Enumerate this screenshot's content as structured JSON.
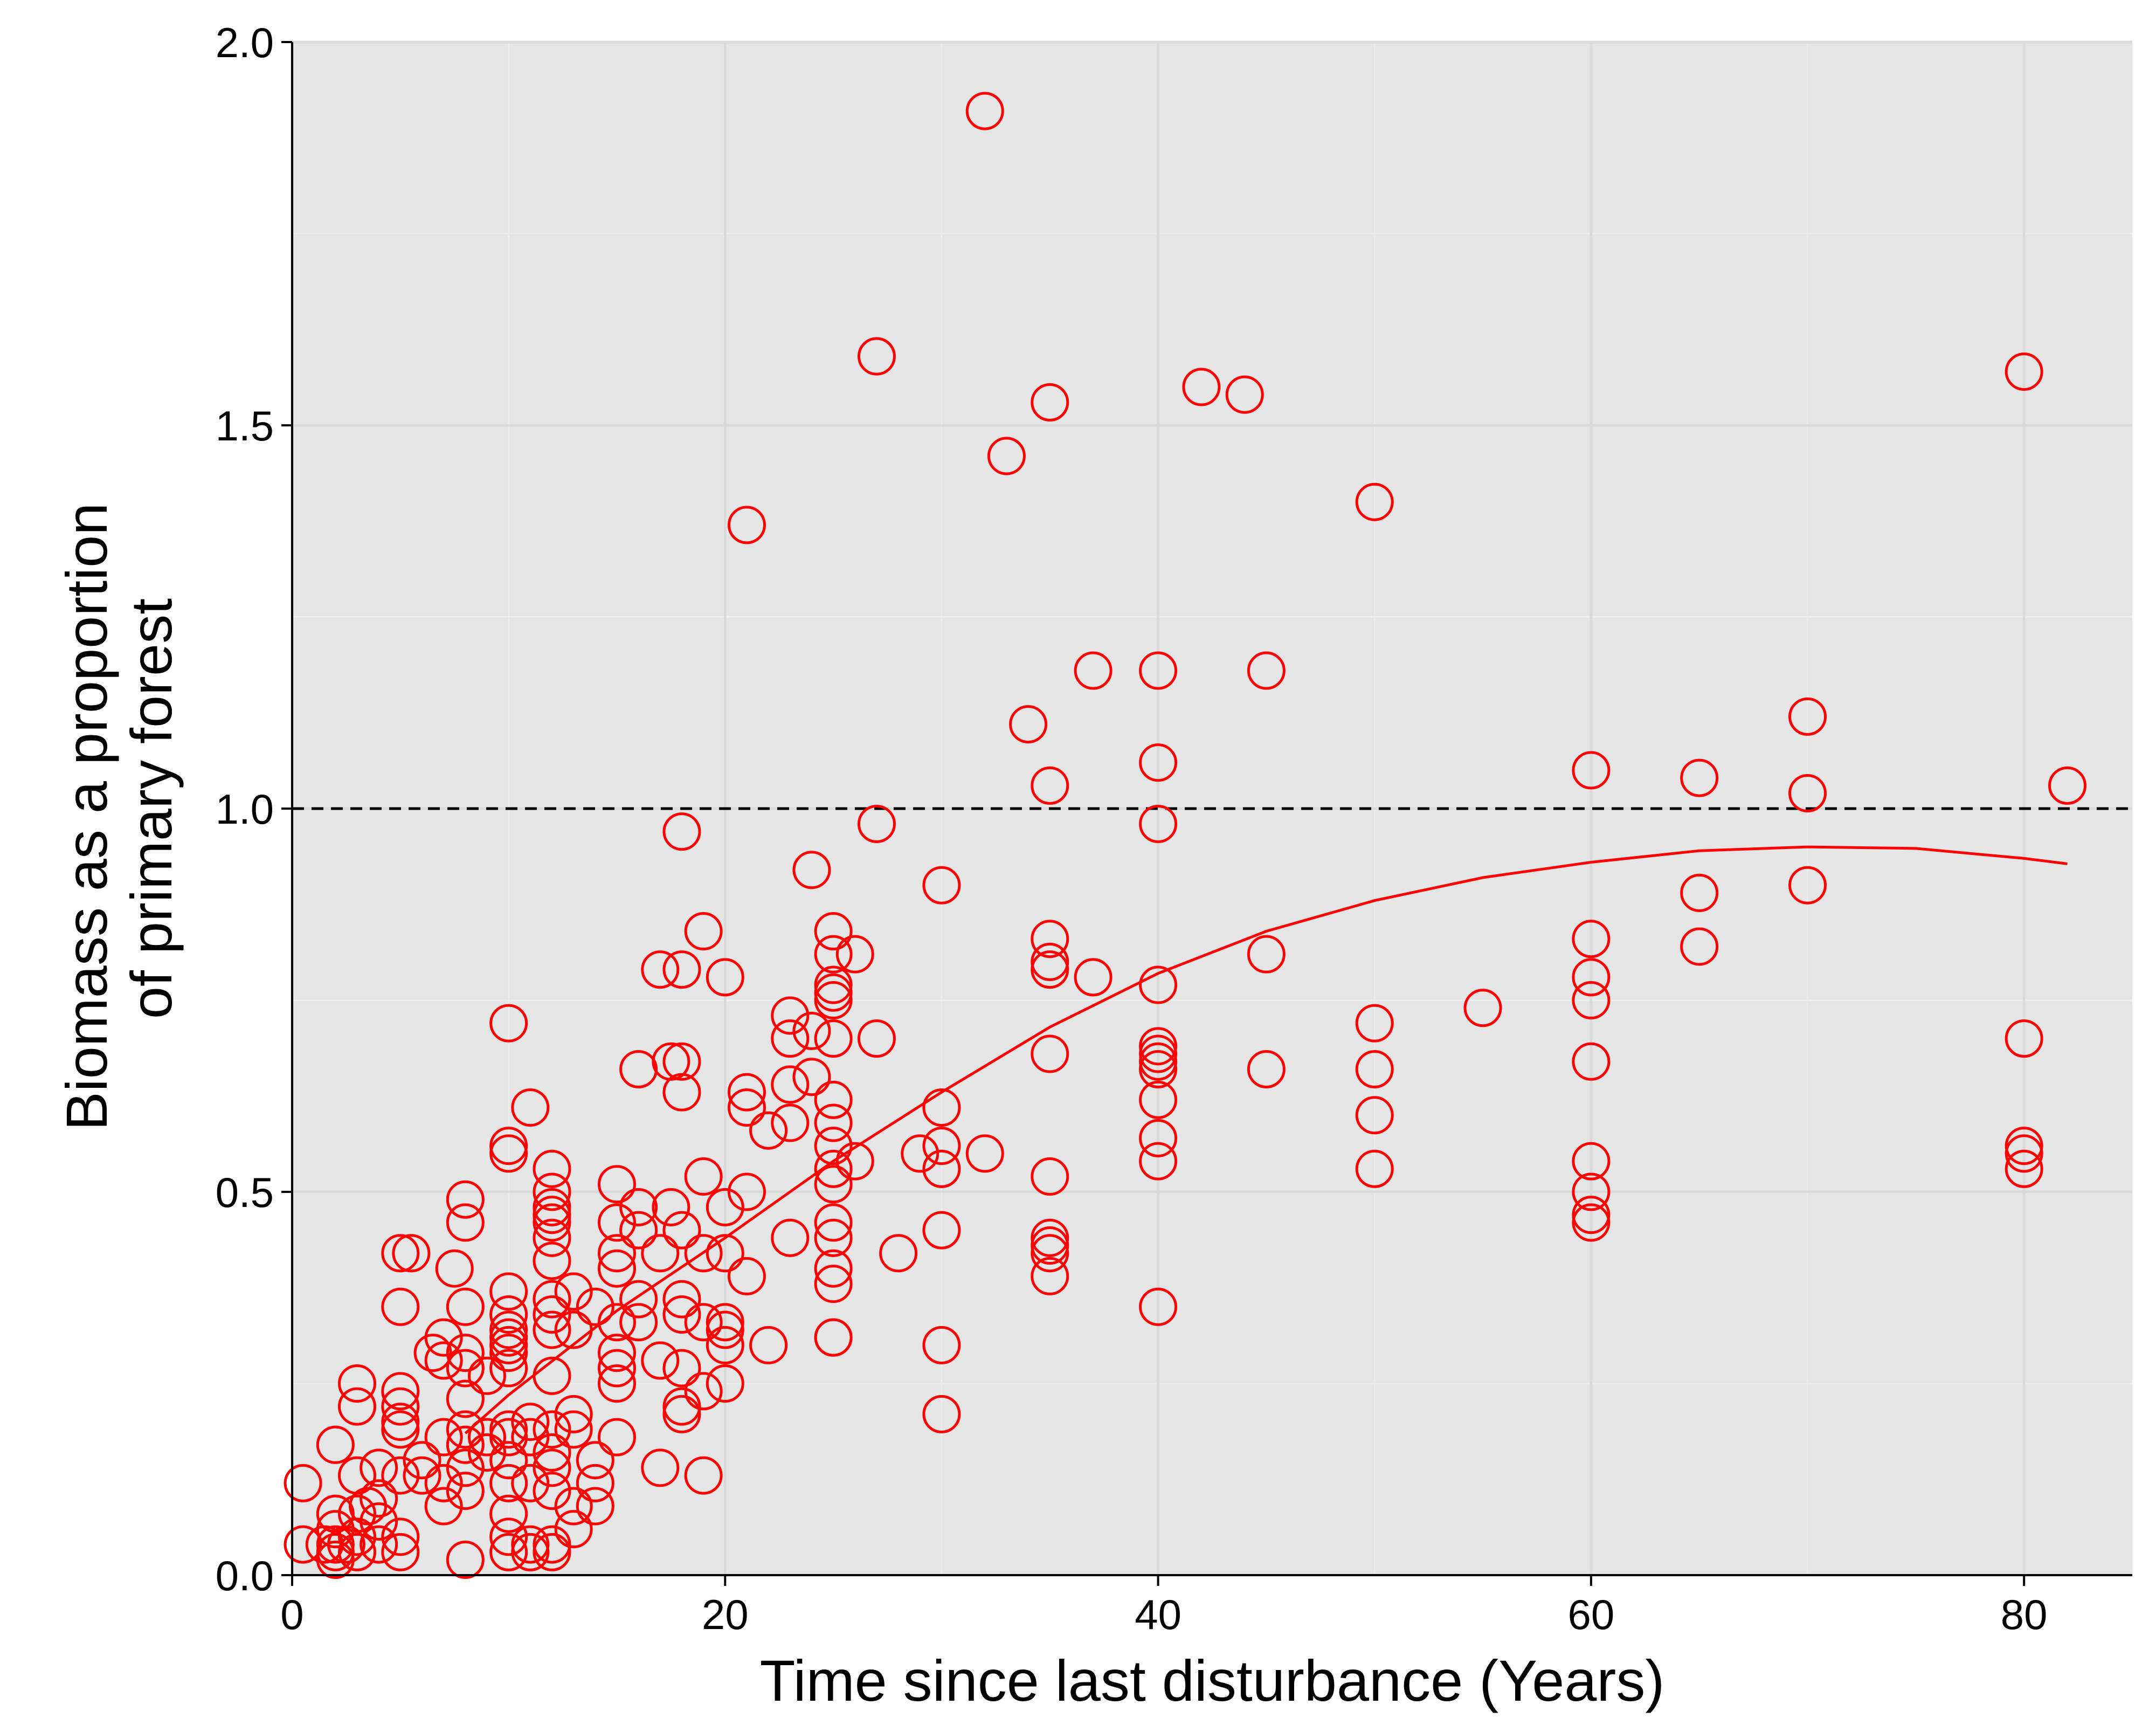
{
  "colors": {
    "panel_background": "#e5e5e5",
    "grid_major": "#d9d9d9",
    "grid_minor": "#ececec",
    "points": "#ff0000",
    "fit_line": "#ff0000",
    "reference_line": "#000000"
  },
  "chart_data": {
    "type": "scatter",
    "xlabel": "Time since last disturbance (Years)",
    "ylabel_lines": [
      "Biomass as a proportion",
      "of primary forest"
    ],
    "xlim": [
      0,
      85
    ],
    "ylim": [
      0,
      2
    ],
    "x_ticks": [
      {
        "value": 0,
        "label": "0"
      },
      {
        "value": 20,
        "label": "20"
      },
      {
        "value": 40,
        "label": "40"
      },
      {
        "value": 60,
        "label": "60"
      },
      {
        "value": 80,
        "label": "80"
      }
    ],
    "y_ticks": [
      {
        "value": 0,
        "label": "0.0"
      },
      {
        "value": 0.5,
        "label": "0.5"
      },
      {
        "value": 1,
        "label": "1.0"
      },
      {
        "value": 1.5,
        "label": "1.5"
      },
      {
        "value": 2,
        "label": "2.0"
      }
    ],
    "grid": true,
    "reference_line": {
      "y": 1.0,
      "style": "dashed"
    },
    "points": [
      [
        32,
        1.91
      ],
      [
        27,
        1.59
      ],
      [
        35,
        1.53
      ],
      [
        33,
        1.46
      ],
      [
        42,
        1.55
      ],
      [
        44,
        1.54
      ],
      [
        80,
        1.57
      ],
      [
        50,
        1.4
      ],
      [
        21,
        1.37
      ],
      [
        37,
        1.18
      ],
      [
        40,
        1.18
      ],
      [
        45,
        1.18
      ],
      [
        34,
        1.11
      ],
      [
        40,
        1.06
      ],
      [
        35,
        1.03
      ],
      [
        60,
        1.05
      ],
      [
        65,
        1.04
      ],
      [
        70,
        1.12
      ],
      [
        70,
        1.02
      ],
      [
        82,
        1.03
      ],
      [
        18,
        0.97
      ],
      [
        27,
        0.98
      ],
      [
        40,
        0.98
      ],
      [
        24,
        0.92
      ],
      [
        30,
        0.9
      ],
      [
        65,
        0.89
      ],
      [
        70,
        0.9
      ],
      [
        19,
        0.84
      ],
      [
        25,
        0.84
      ],
      [
        26,
        0.81
      ],
      [
        25,
        0.81
      ],
      [
        17,
        0.79
      ],
      [
        18,
        0.79
      ],
      [
        20,
        0.78
      ],
      [
        35,
        0.83
      ],
      [
        35,
        0.8
      ],
      [
        35,
        0.79
      ],
      [
        37,
        0.78
      ],
      [
        40,
        0.77
      ],
      [
        45,
        0.81
      ],
      [
        60,
        0.83
      ],
      [
        60,
        0.78
      ],
      [
        60,
        0.75
      ],
      [
        65,
        0.82
      ],
      [
        25,
        0.77
      ],
      [
        25,
        0.76
      ],
      [
        25,
        0.75
      ],
      [
        23,
        0.73
      ],
      [
        10,
        0.72
      ],
      [
        50,
        0.72
      ],
      [
        55,
        0.74
      ],
      [
        23,
        0.7
      ],
      [
        24,
        0.71
      ],
      [
        25,
        0.7
      ],
      [
        27,
        0.7
      ],
      [
        80,
        0.7
      ],
      [
        16,
        0.66
      ],
      [
        17.5,
        0.67
      ],
      [
        18,
        0.67
      ],
      [
        35,
        0.68
      ],
      [
        40,
        0.69
      ],
      [
        40,
        0.68
      ],
      [
        40,
        0.67
      ],
      [
        40,
        0.66
      ],
      [
        45,
        0.66
      ],
      [
        50,
        0.66
      ],
      [
        60,
        0.67
      ],
      [
        18,
        0.63
      ],
      [
        21,
        0.63
      ],
      [
        23,
        0.64
      ],
      [
        24,
        0.65
      ],
      [
        25,
        0.62
      ],
      [
        21,
        0.61
      ],
      [
        11,
        0.61
      ],
      [
        30,
        0.61
      ],
      [
        40,
        0.62
      ],
      [
        50,
        0.6
      ],
      [
        25,
        0.59
      ],
      [
        23,
        0.59
      ],
      [
        22,
        0.58
      ],
      [
        40,
        0.57
      ],
      [
        10,
        0.56
      ],
      [
        10,
        0.55
      ],
      [
        25,
        0.56
      ],
      [
        29,
        0.55
      ],
      [
        30,
        0.56
      ],
      [
        32,
        0.55
      ],
      [
        26,
        0.54
      ],
      [
        25,
        0.53
      ],
      [
        40,
        0.54
      ],
      [
        60,
        0.54
      ],
      [
        80,
        0.56
      ],
      [
        80,
        0.55
      ],
      [
        12,
        0.53
      ],
      [
        30,
        0.53
      ],
      [
        50,
        0.53
      ],
      [
        80,
        0.53
      ],
      [
        35,
        0.52
      ],
      [
        19,
        0.52
      ],
      [
        25,
        0.51
      ],
      [
        15,
        0.51
      ],
      [
        12,
        0.5
      ],
      [
        21,
        0.5
      ],
      [
        60,
        0.5
      ],
      [
        8,
        0.49
      ],
      [
        12,
        0.48
      ],
      [
        16,
        0.48
      ],
      [
        17.5,
        0.48
      ],
      [
        20,
        0.48
      ],
      [
        12,
        0.47
      ],
      [
        60,
        0.47
      ],
      [
        8,
        0.46
      ],
      [
        12,
        0.46
      ],
      [
        60,
        0.46
      ],
      [
        15,
        0.46
      ],
      [
        25,
        0.46
      ],
      [
        16,
        0.45
      ],
      [
        18,
        0.45
      ],
      [
        12,
        0.44
      ],
      [
        25,
        0.44
      ],
      [
        23,
        0.44
      ],
      [
        30,
        0.45
      ],
      [
        35,
        0.44
      ],
      [
        35,
        0.43
      ],
      [
        35,
        0.42
      ],
      [
        5,
        0.42
      ],
      [
        5.5,
        0.42
      ],
      [
        15,
        0.42
      ],
      [
        17,
        0.42
      ],
      [
        19,
        0.42
      ],
      [
        20,
        0.42
      ],
      [
        28,
        0.42
      ],
      [
        12,
        0.41
      ],
      [
        15,
        0.4
      ],
      [
        25,
        0.4
      ],
      [
        7.5,
        0.4
      ],
      [
        21,
        0.39
      ],
      [
        35,
        0.39
      ],
      [
        25,
        0.38
      ],
      [
        10,
        0.37
      ],
      [
        13,
        0.37
      ],
      [
        12,
        0.36
      ],
      [
        14,
        0.35
      ],
      [
        16,
        0.36
      ],
      [
        18,
        0.36
      ],
      [
        5,
        0.35
      ],
      [
        8,
        0.35
      ],
      [
        10,
        0.34
      ],
      [
        40,
        0.35
      ],
      [
        12,
        0.34
      ],
      [
        18,
        0.34
      ],
      [
        19,
        0.33
      ],
      [
        20,
        0.33
      ],
      [
        15,
        0.33
      ],
      [
        16,
        0.33
      ],
      [
        10,
        0.32
      ],
      [
        12,
        0.32
      ],
      [
        13,
        0.32
      ],
      [
        20,
        0.32
      ],
      [
        7,
        0.31
      ],
      [
        10,
        0.31
      ],
      [
        25,
        0.31
      ],
      [
        30,
        0.3
      ],
      [
        25,
        0.31
      ],
      [
        10,
        0.3
      ],
      [
        20,
        0.3
      ],
      [
        22,
        0.3
      ],
      [
        8,
        0.29
      ],
      [
        10,
        0.29
      ],
      [
        15,
        0.29
      ],
      [
        6.5,
        0.29
      ],
      [
        17,
        0.28
      ],
      [
        7,
        0.28
      ],
      [
        8,
        0.27
      ],
      [
        10,
        0.27
      ],
      [
        15,
        0.27
      ],
      [
        18,
        0.27
      ],
      [
        9,
        0.26
      ],
      [
        12,
        0.26
      ],
      [
        20,
        0.25
      ],
      [
        19,
        0.24
      ],
      [
        3,
        0.25
      ],
      [
        5,
        0.24
      ],
      [
        15,
        0.25
      ],
      [
        8,
        0.23
      ],
      [
        5,
        0.22
      ],
      [
        3,
        0.22
      ],
      [
        18,
        0.22
      ],
      [
        13,
        0.21
      ],
      [
        30,
        0.21
      ],
      [
        18,
        0.21
      ],
      [
        5,
        0.2
      ],
      [
        11,
        0.2
      ],
      [
        10,
        0.19
      ],
      [
        12,
        0.19
      ],
      [
        8,
        0.19
      ],
      [
        5,
        0.19
      ],
      [
        7,
        0.18
      ],
      [
        9,
        0.18
      ],
      [
        10,
        0.18
      ],
      [
        13,
        0.19
      ],
      [
        15,
        0.18
      ],
      [
        11,
        0.18
      ],
      [
        2,
        0.17
      ],
      [
        8,
        0.17
      ],
      [
        9,
        0.16
      ],
      [
        12,
        0.16
      ],
      [
        6,
        0.15
      ],
      [
        10,
        0.15
      ],
      [
        14,
        0.15
      ],
      [
        8,
        0.14
      ],
      [
        17,
        0.14
      ],
      [
        19,
        0.13
      ],
      [
        12,
        0.14
      ],
      [
        4,
        0.14
      ],
      [
        5,
        0.13
      ],
      [
        6,
        0.13
      ],
      [
        3,
        0.13
      ],
      [
        7,
        0.12
      ],
      [
        10,
        0.12
      ],
      [
        11,
        0.12
      ],
      [
        14,
        0.12
      ],
      [
        0.5,
        0.12
      ],
      [
        8,
        0.11
      ],
      [
        12,
        0.11
      ],
      [
        4,
        0.1
      ],
      [
        7,
        0.09
      ],
      [
        3.5,
        0.09
      ],
      [
        13,
        0.09
      ],
      [
        14,
        0.09
      ],
      [
        10,
        0.08
      ],
      [
        2,
        0.08
      ],
      [
        3,
        0.08
      ],
      [
        4,
        0.07
      ],
      [
        13,
        0.06
      ],
      [
        2,
        0.06
      ],
      [
        3,
        0.05
      ],
      [
        5,
        0.05
      ],
      [
        10,
        0.05
      ],
      [
        12,
        0.04
      ],
      [
        0.5,
        0.04
      ],
      [
        1.5,
        0.04
      ],
      [
        2,
        0.04
      ],
      [
        2.5,
        0.04
      ],
      [
        4,
        0.04
      ],
      [
        11,
        0.04
      ],
      [
        12,
        0.03
      ],
      [
        5,
        0.03
      ],
      [
        2,
        0.03
      ],
      [
        3,
        0.03
      ],
      [
        10,
        0.03
      ],
      [
        2,
        0.02
      ],
      [
        8,
        0.02
      ],
      [
        11,
        0.03
      ]
    ],
    "fit_line": [
      [
        8,
        0.185
      ],
      [
        10,
        0.235
      ],
      [
        15,
        0.345
      ],
      [
        20,
        0.44
      ],
      [
        25,
        0.54
      ],
      [
        30,
        0.63
      ],
      [
        35,
        0.715
      ],
      [
        40,
        0.785
      ],
      [
        45,
        0.84
      ],
      [
        50,
        0.88
      ],
      [
        55,
        0.91
      ],
      [
        60,
        0.93
      ],
      [
        65,
        0.945
      ],
      [
        70,
        0.95
      ],
      [
        75,
        0.948
      ],
      [
        80,
        0.935
      ],
      [
        82,
        0.928
      ]
    ]
  }
}
